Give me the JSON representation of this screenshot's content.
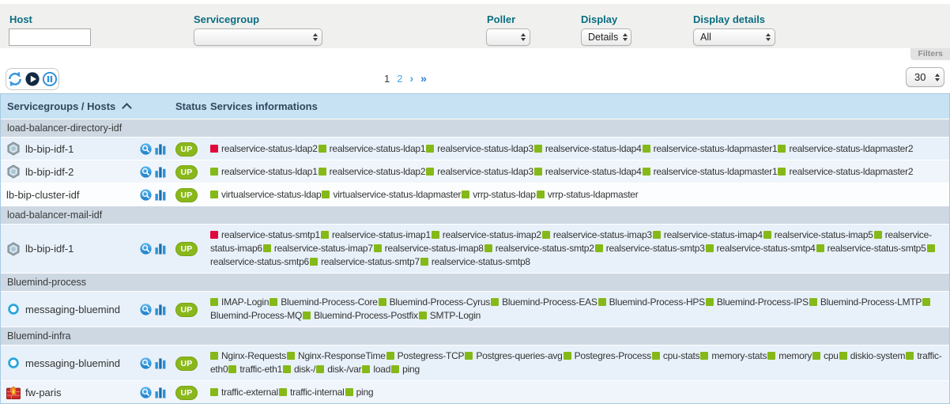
{
  "filter_bar": {
    "host": {
      "label": "Host",
      "value": ""
    },
    "servicegroup": {
      "label": "Servicegroup",
      "value": ""
    },
    "poller": {
      "label": "Poller",
      "value": ""
    },
    "display": {
      "label": "Display",
      "value": "Details"
    },
    "display_details": {
      "label": "Display details",
      "value": "All"
    },
    "filters_tab_label": "Filters"
  },
  "toolbar": {
    "media_controls": [
      "refresh-icon",
      "play-icon",
      "pause-icon"
    ],
    "pagination": {
      "pages": [
        "1",
        "2"
      ],
      "current_page": "1",
      "next_label": "›",
      "last_label": "»"
    },
    "page_size_value": "30"
  },
  "table": {
    "columns": [
      "Servicegroups / Hosts",
      "Status",
      "Services informations"
    ],
    "sort_icon": "chevron-up-icon",
    "status_colors": {
      "up_badge": "#8ab81c",
      "ok_square": "#85b917",
      "critical_square": "#e00b3c"
    },
    "groups": [
      {
        "name": "load-balancer-directory-idf",
        "hosts": [
          {
            "name": "lb-bip-idf-1",
            "icon": "loadbalancer-icon",
            "status": "UP",
            "services": [
              {
                "label": "realservice-status-ldap2",
                "state": "critical"
              },
              {
                "label": "realservice-status-ldap1",
                "state": "ok"
              },
              {
                "label": "realservice-status-ldap3",
                "state": "ok"
              },
              {
                "label": "realservice-status-ldap4",
                "state": "ok"
              },
              {
                "label": "realservice-status-ldapmaster1",
                "state": "ok"
              },
              {
                "label": "realservice-status-ldapmaster2",
                "state": "ok"
              }
            ]
          },
          {
            "name": "lb-bip-idf-2",
            "icon": "loadbalancer-icon",
            "status": "UP",
            "services": [
              {
                "label": "realservice-status-ldap1",
                "state": "ok"
              },
              {
                "label": "realservice-status-ldap2",
                "state": "ok"
              },
              {
                "label": "realservice-status-ldap3",
                "state": "ok"
              },
              {
                "label": "realservice-status-ldap4",
                "state": "ok"
              },
              {
                "label": "realservice-status-ldapmaster1",
                "state": "ok"
              },
              {
                "label": "realservice-status-ldapmaster2",
                "state": "ok"
              }
            ]
          },
          {
            "name": "lb-bip-cluster-idf",
            "icon": null,
            "status": "UP",
            "services": [
              {
                "label": "virtualservice-status-ldap",
                "state": "ok"
              },
              {
                "label": "virtualservice-status-ldapmaster",
                "state": "ok"
              },
              {
                "label": "vrrp-status-ldap",
                "state": "ok"
              },
              {
                "label": "vrrp-status-ldapmaster",
                "state": "ok"
              }
            ]
          }
        ]
      },
      {
        "name": "load-balancer-mail-idf",
        "hosts": [
          {
            "name": "lb-bip-idf-1",
            "icon": "loadbalancer-icon",
            "status": "UP",
            "services": [
              {
                "label": "realservice-status-smtp1",
                "state": "critical"
              },
              {
                "label": "realservice-status-imap1",
                "state": "ok"
              },
              {
                "label": "realservice-status-imap2",
                "state": "ok"
              },
              {
                "label": "realservice-status-imap3",
                "state": "ok"
              },
              {
                "label": "realservice-status-imap4",
                "state": "ok"
              },
              {
                "label": "realservice-status-imap5",
                "state": "ok"
              },
              {
                "label": "realservice-status-imap6",
                "state": "ok"
              },
              {
                "label": "realservice-status-imap7",
                "state": "ok"
              },
              {
                "label": "realservice-status-imap8",
                "state": "ok"
              },
              {
                "label": "realservice-status-smtp2",
                "state": "ok"
              },
              {
                "label": "realservice-status-smtp3",
                "state": "ok"
              },
              {
                "label": "realservice-status-smtp4",
                "state": "ok"
              },
              {
                "label": "realservice-status-smtp5",
                "state": "ok"
              },
              {
                "label": "realservice-status-smtp6",
                "state": "ok"
              },
              {
                "label": "realservice-status-smtp7",
                "state": "ok"
              },
              {
                "label": "realservice-status-smtp8",
                "state": "ok"
              }
            ]
          }
        ]
      },
      {
        "name": "Bluemind-process",
        "hosts": [
          {
            "name": "messaging-bluemind",
            "icon": "bluemind-icon",
            "status": "UP",
            "services": [
              {
                "label": "IMAP-Login",
                "state": "ok"
              },
              {
                "label": "Bluemind-Process-Core",
                "state": "ok"
              },
              {
                "label": "Bluemind-Process-Cyrus",
                "state": "ok"
              },
              {
                "label": "Bluemind-Process-EAS",
                "state": "ok"
              },
              {
                "label": "Bluemind-Process-HPS",
                "state": "ok"
              },
              {
                "label": "Bluemind-Process-IPS",
                "state": "ok"
              },
              {
                "label": "Bluemind-Process-LMTP",
                "state": "ok"
              },
              {
                "label": "Bluemind-Process-MQ",
                "state": "ok"
              },
              {
                "label": "Bluemind-Process-Postfix",
                "state": "ok"
              },
              {
                "label": "SMTP-Login",
                "state": "ok"
              }
            ]
          }
        ]
      },
      {
        "name": "Bluemind-infra",
        "hosts": [
          {
            "name": "messaging-bluemind",
            "icon": "bluemind-icon",
            "status": "UP",
            "services": [
              {
                "label": "Nginx-Requests",
                "state": "ok"
              },
              {
                "label": "Nginx-ResponseTime",
                "state": "ok"
              },
              {
                "label": "Postegress-TCP",
                "state": "ok"
              },
              {
                "label": "Postgres-queries-avg",
                "state": "ok"
              },
              {
                "label": "Postegres-Process",
                "state": "ok"
              },
              {
                "label": "cpu-stats",
                "state": "ok"
              },
              {
                "label": "memory-stats",
                "state": "ok"
              },
              {
                "label": "memory",
                "state": "ok"
              },
              {
                "label": "cpu",
                "state": "ok"
              },
              {
                "label": "diskio-system",
                "state": "ok"
              },
              {
                "label": "traffic-eth0",
                "state": "ok"
              },
              {
                "label": "traffic-eth1",
                "state": "ok"
              },
              {
                "label": "disk-/",
                "state": "ok"
              },
              {
                "label": "disk-/var",
                "state": "ok"
              },
              {
                "label": "load",
                "state": "ok"
              },
              {
                "label": "ping",
                "state": "ok"
              }
            ]
          },
          {
            "name": "fw-paris",
            "icon": "firewall-icon",
            "status": "UP",
            "services": [
              {
                "label": "traffic-external",
                "state": "ok"
              },
              {
                "label": "traffic-internal",
                "state": "ok"
              },
              {
                "label": "ping",
                "state": "ok"
              }
            ]
          }
        ]
      }
    ]
  }
}
